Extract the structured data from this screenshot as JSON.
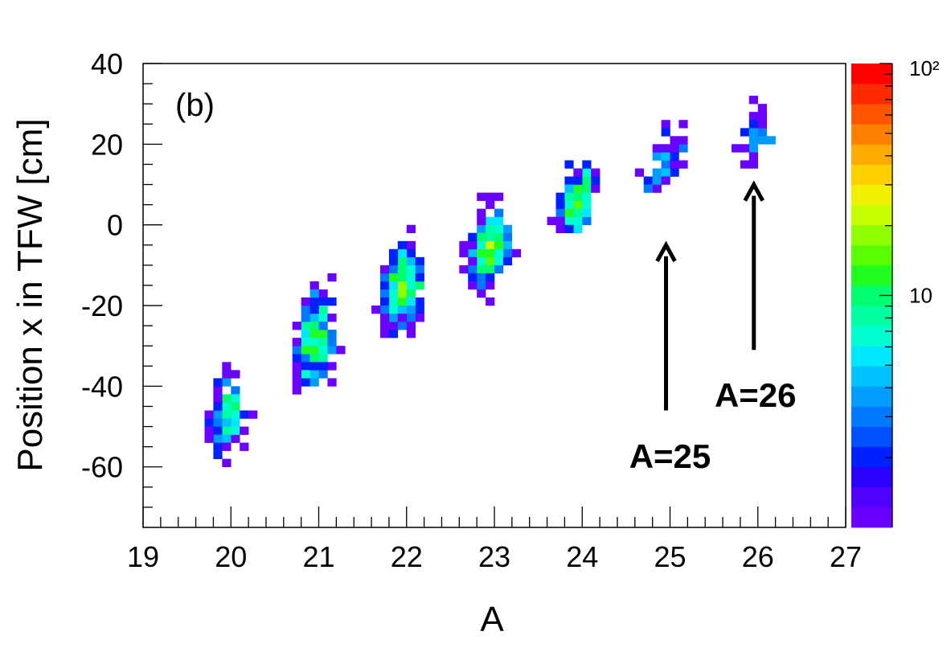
{
  "chart_data": {
    "type": "heatmap",
    "title": "",
    "xlabel": "A",
    "ylabel": "Position x in TFW [cm]",
    "panel_label": "(b)",
    "xlim": [
      19,
      27
    ],
    "ylim": [
      -75,
      40
    ],
    "x_ticks": [
      19,
      20,
      21,
      22,
      23,
      24,
      25,
      26,
      27
    ],
    "x_tick_labels": [
      "19",
      "20",
      "21",
      "22",
      "23",
      "24",
      "25",
      "26",
      "27"
    ],
    "y_ticks": [
      40,
      20,
      0,
      -20,
      -40,
      -60
    ],
    "y_tick_labels": [
      "40",
      "20",
      "0",
      "-20",
      "-40",
      "-60"
    ],
    "bin_width": {
      "x": 0.1,
      "y": 2
    },
    "z_scale": "log",
    "z_range": [
      1,
      100
    ],
    "z_tick_labels": [
      "10",
      "10²"
    ],
    "palette": [
      "#6a00ff",
      "#5000ff",
      "#2a00ff",
      "#0020ff",
      "#0050ff",
      "#0078ff",
      "#009cff",
      "#00c0ff",
      "#00e8ff",
      "#00ffd0",
      "#00ffa0",
      "#00ff70",
      "#20ff20",
      "#58ff00",
      "#90ff00",
      "#c8ff00",
      "#f0f000",
      "#ffd000",
      "#ffaa00",
      "#ff8000",
      "#ff5500",
      "#ff2a00",
      "#ff0000"
    ],
    "clusters": [
      {
        "A": 20,
        "x_center": -46,
        "x_sigma": 7.5,
        "peak_count": 9,
        "events": 110
      },
      {
        "A": 21,
        "x_center": -28,
        "x_sigma": 8.5,
        "peak_count": 11,
        "events": 230
      },
      {
        "A": 22,
        "x_center": -14,
        "x_sigma": 7.5,
        "peak_count": 10,
        "events": 240
      },
      {
        "A": 23,
        "x_center": -5,
        "x_sigma": 7.5,
        "peak_count": 14,
        "events": 260
      },
      {
        "A": 24,
        "x_center": 7,
        "x_sigma": 6.5,
        "peak_count": 10,
        "events": 170
      },
      {
        "A": 25,
        "x_center": 16,
        "x_sigma": 6,
        "peak_count": 3,
        "events": 45
      },
      {
        "A": 26,
        "x_center": 22,
        "x_sigma": 5,
        "peak_count": 3,
        "events": 30
      }
    ],
    "annotations": [
      {
        "text": "A=25",
        "arrow_x": 25,
        "arrow_y_from": -46,
        "arrow_y_to": -5
      },
      {
        "text": "A=26",
        "arrow_x": 26,
        "arrow_y_from": -31,
        "arrow_y_to": 10
      }
    ]
  }
}
